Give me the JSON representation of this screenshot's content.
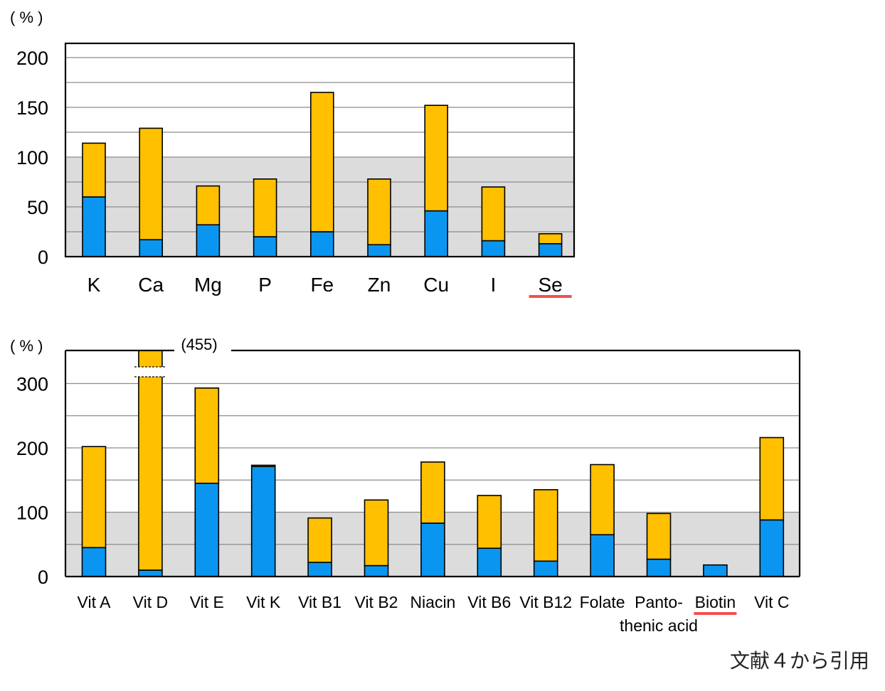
{
  "chart_data": [
    {
      "type": "bar",
      "stacked": true,
      "unit_label": "( % )",
      "categories": [
        "K",
        "Ca",
        "Mg",
        "P",
        "Fe",
        "Zn",
        "Cu",
        "I",
        "Se"
      ],
      "highlighted_category": "Se",
      "series": [
        {
          "values": [
            60,
            17,
            32,
            20,
            25,
            12,
            46,
            16,
            13
          ],
          "color": "#0A96F0"
        },
        {
          "values": [
            54,
            112,
            39,
            58,
            140,
            66,
            106,
            54,
            10
          ],
          "color": "#FFC000"
        }
      ],
      "ylim": [
        0,
        210
      ],
      "yticks": [
        0,
        50,
        100,
        150,
        200
      ],
      "grid_lines": [
        0,
        25,
        50,
        75,
        100,
        125,
        150,
        175,
        200
      ],
      "shaded_band": [
        0,
        100
      ],
      "band_color": "#DCDCDC",
      "highlight_color": "#F05050"
    },
    {
      "type": "bar",
      "stacked": true,
      "unit_label": "( % )",
      "categories": [
        "Vit A",
        "Vit D",
        "Vit E",
        "Vit K",
        "Vit B1",
        "Vit B2",
        "Niacin",
        "Vit B6",
        "Vit B12",
        "Folate",
        "Panto-\nthenic acid",
        "Biotin",
        "Vit C"
      ],
      "highlighted_category": "Biotin",
      "series": [
        {
          "values": [
            45,
            10,
            145,
            171,
            22,
            17,
            83,
            44,
            24,
            65,
            27,
            18,
            88
          ],
          "color": "#0A96F0"
        },
        {
          "values": [
            157,
            445,
            148,
            2,
            69,
            102,
            95,
            82,
            111,
            109,
            71,
            0,
            128
          ],
          "color": "#FFC000"
        }
      ],
      "ylim": [
        0,
        350
      ],
      "yticks": [
        0,
        100,
        200,
        300
      ],
      "grid_lines": [
        0,
        50,
        100,
        150,
        200,
        250,
        300
      ],
      "shaded_band": [
        0,
        100
      ],
      "band_color": "#DCDCDC",
      "highlight_color": "#F05050",
      "axis_break": {
        "category": "Vit D",
        "total": 455,
        "label": "(455)"
      }
    }
  ],
  "source_note": "文献４から引用"
}
